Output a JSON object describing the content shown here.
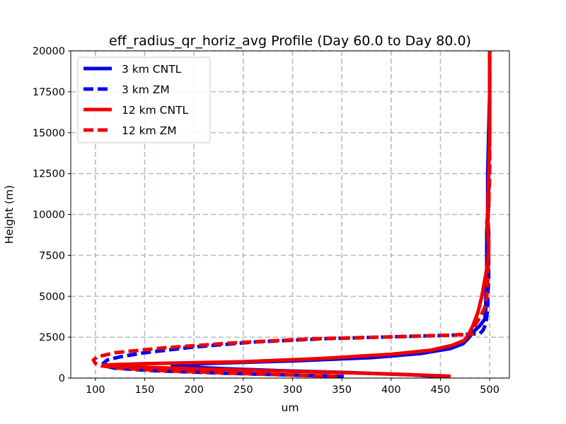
{
  "chart_data": {
    "type": "line",
    "title": "eff_radius_qr_horiz_avg Profile (Day 60.0 to Day 80.0)",
    "xlabel": "um",
    "ylabel": "Height (m)",
    "xlim": [
      75,
      520
    ],
    "ylim": [
      0,
      20000
    ],
    "xticks": [
      100,
      150,
      200,
      250,
      300,
      350,
      400,
      450,
      500
    ],
    "yticks": [
      0,
      2500,
      5000,
      7500,
      10000,
      12500,
      15000,
      17500,
      20000
    ],
    "grid": true,
    "legend_position": "top-left",
    "series": [
      {
        "name": "3 km CNTL",
        "color": "#0000ee",
        "style": "solid",
        "points": [
          [
            452,
            80
          ],
          [
            420,
            200
          ],
          [
            360,
            330
          ],
          [
            290,
            450
          ],
          [
            230,
            570
          ],
          [
            190,
            690
          ],
          [
            178,
            800
          ],
          [
            215,
            900
          ],
          [
            300,
            1050
          ],
          [
            380,
            1250
          ],
          [
            430,
            1500
          ],
          [
            460,
            1800
          ],
          [
            473,
            2100
          ],
          [
            478,
            2400
          ],
          [
            483,
            2800
          ],
          [
            490,
            3200
          ],
          [
            495,
            3600
          ],
          [
            496,
            4200
          ],
          [
            496,
            5000
          ],
          [
            497,
            6000
          ],
          [
            497,
            7000
          ],
          [
            497,
            8000
          ],
          [
            497,
            9000
          ],
          [
            498,
            9800
          ],
          [
            498,
            10500
          ],
          [
            498,
            12500
          ],
          [
            499,
            15000
          ],
          [
            500,
            17500
          ],
          [
            500,
            20000
          ]
        ]
      },
      {
        "name": "3 km ZM",
        "color": "#0000ee",
        "style": "dashed",
        "points": [
          [
            352,
            100
          ],
          [
            300,
            180
          ],
          [
            230,
            300
          ],
          [
            160,
            450
          ],
          [
            120,
            600
          ],
          [
            108,
            750
          ],
          [
            108,
            900
          ],
          [
            112,
            1100
          ],
          [
            125,
            1300
          ],
          [
            150,
            1550
          ],
          [
            200,
            1900
          ],
          [
            260,
            2200
          ],
          [
            330,
            2400
          ],
          [
            400,
            2520
          ],
          [
            460,
            2620
          ],
          [
            490,
            2720
          ],
          [
            493,
            2900
          ],
          [
            496,
            3300
          ],
          [
            498,
            4200
          ],
          [
            498,
            5000
          ],
          [
            499,
            6000
          ],
          [
            499,
            7500
          ],
          [
            499,
            9000
          ],
          [
            498,
            9600
          ],
          [
            499,
            10500
          ],
          [
            499,
            12500
          ],
          [
            500,
            15000
          ],
          [
            500,
            17500
          ],
          [
            500,
            20000
          ]
        ]
      },
      {
        "name": "12 km CNTL",
        "color": "#ee0000",
        "style": "solid",
        "points": [
          [
            459,
            120
          ],
          [
            400,
            250
          ],
          [
            320,
            380
          ],
          [
            240,
            500
          ],
          [
            170,
            620
          ],
          [
            115,
            720
          ],
          [
            108,
            800
          ],
          [
            150,
            880
          ],
          [
            250,
            1000
          ],
          [
            330,
            1200
          ],
          [
            400,
            1450
          ],
          [
            440,
            1700
          ],
          [
            462,
            2000
          ],
          [
            474,
            2300
          ],
          [
            478,
            2600
          ],
          [
            483,
            3200
          ],
          [
            488,
            4000
          ],
          [
            492,
            5000
          ],
          [
            495,
            6000
          ],
          [
            498,
            7000
          ],
          [
            499,
            8000
          ],
          [
            498,
            9000
          ],
          [
            497,
            9500
          ],
          [
            498,
            10000
          ],
          [
            499,
            12500
          ],
          [
            500,
            15000
          ],
          [
            500,
            17500
          ],
          [
            500,
            20000
          ]
        ]
      },
      {
        "name": "12 km ZM",
        "color": "#ee0000",
        "style": "dashed",
        "points": [
          [
            345,
            100
          ],
          [
            300,
            180
          ],
          [
            240,
            300
          ],
          [
            170,
            450
          ],
          [
            125,
            600
          ],
          [
            106,
            750
          ],
          [
            100,
            900
          ],
          [
            98,
            1100
          ],
          [
            102,
            1300
          ],
          [
            120,
            1550
          ],
          [
            170,
            1850
          ],
          [
            240,
            2150
          ],
          [
            320,
            2400
          ],
          [
            400,
            2520
          ],
          [
            460,
            2620
          ],
          [
            482,
            2680
          ],
          [
            480,
            2800
          ],
          [
            484,
            3100
          ],
          [
            490,
            3700
          ],
          [
            495,
            4300
          ],
          [
            497,
            5000
          ],
          [
            498,
            6000
          ],
          [
            499,
            7500
          ],
          [
            499,
            9000
          ],
          [
            498,
            9600
          ],
          [
            499,
            10500
          ],
          [
            500,
            12500
          ],
          [
            500,
            15000
          ],
          [
            500,
            17500
          ],
          [
            500,
            20000
          ]
        ]
      }
    ]
  }
}
